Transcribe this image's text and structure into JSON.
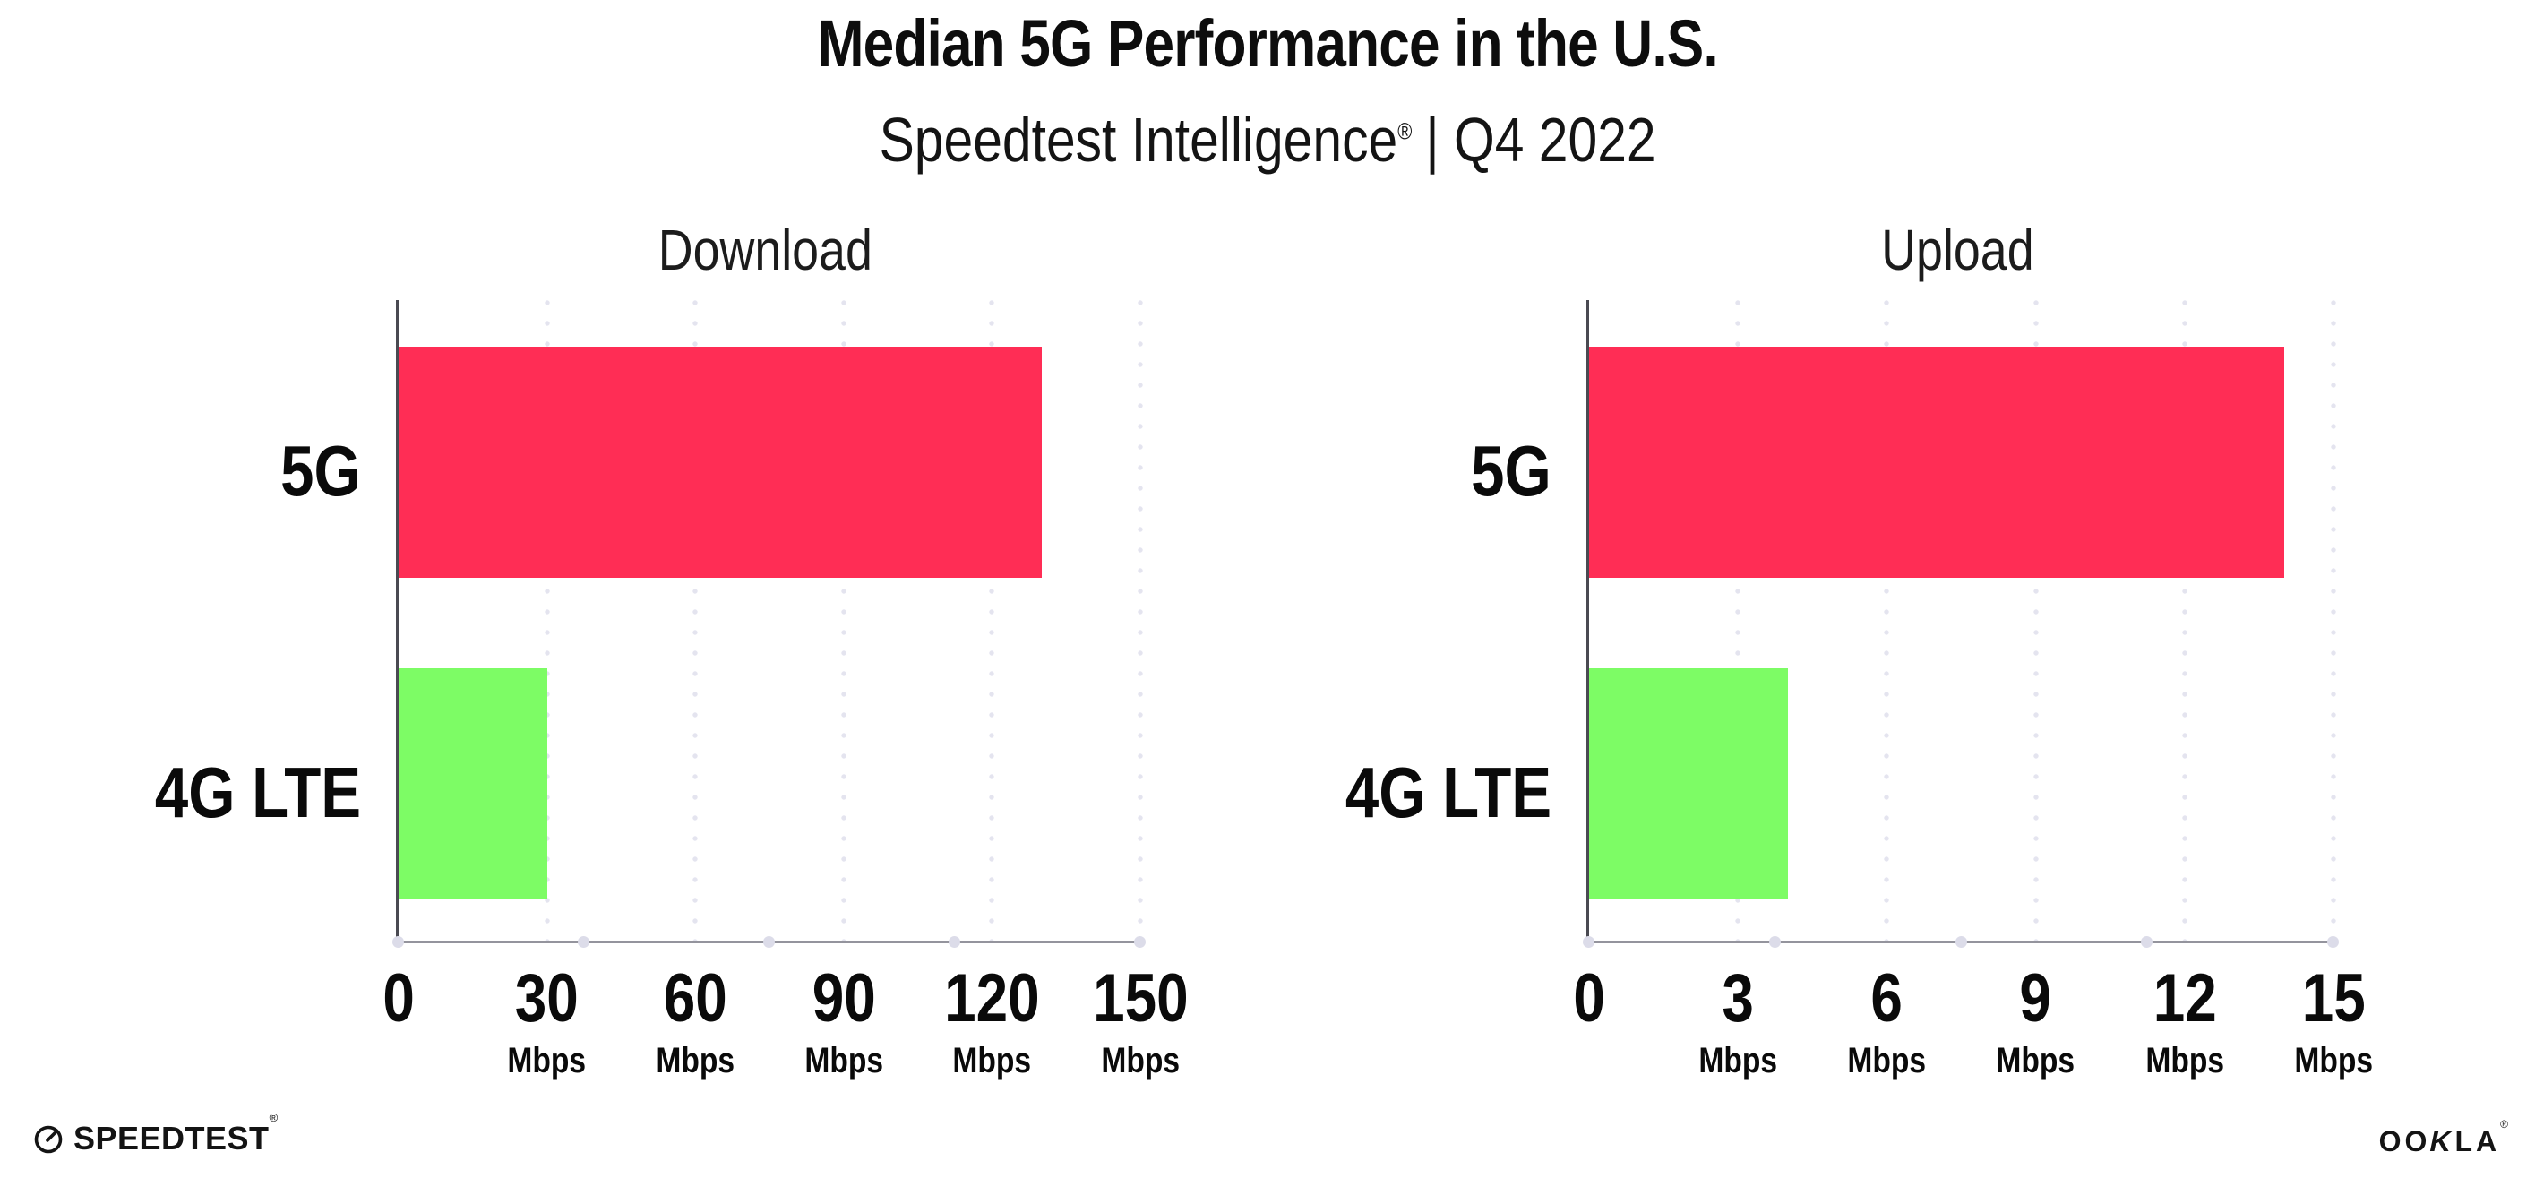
{
  "header": {
    "title": "Median 5G Performance in the U.S.",
    "subtitle": {
      "brand": "Speedtest Intelligence",
      "reg": "®",
      "rest": "| Q4 2022"
    }
  },
  "chart_data": [
    {
      "type": "bar",
      "orientation": "horizontal",
      "title": "Download",
      "categories": [
        "5G",
        "4G LTE"
      ],
      "values": [
        130,
        30
      ],
      "unit": "Mbps",
      "xlim": [
        0,
        150
      ],
      "xticks": [
        0,
        30,
        60,
        90,
        120,
        150
      ],
      "bar_colors": [
        "#ff2d55",
        "#7dfc65"
      ],
      "grid": "dotted-vertical-lavender",
      "legend": "none"
    },
    {
      "type": "bar",
      "orientation": "horizontal",
      "title": "Upload",
      "categories": [
        "5G",
        "4G LTE"
      ],
      "values": [
        14,
        4
      ],
      "unit": "Mbps",
      "xlim": [
        0,
        15
      ],
      "xticks": [
        0,
        3,
        6,
        9,
        12,
        15
      ],
      "bar_colors": [
        "#ff2d55",
        "#7dfc65"
      ],
      "grid": "dotted-vertical-lavender",
      "legend": "none"
    }
  ],
  "colors": {
    "bar_5g": "#ff2d55",
    "bar_4g_lte": "#7dfc65",
    "gridline": "#e4e4ef",
    "x_axis": "#94949d",
    "y_axis": "#4a4a52",
    "axis_dot": "#dcdce9",
    "text": "#0d0d0d",
    "background": "#ffffff"
  },
  "footer": {
    "speedtest_logo_text": "SPEEDTEST",
    "speedtest_reg": "®",
    "ookla_logo_text_left": "OO",
    "ookla_logo_k": "K",
    "ookla_logo_text_right": "LA",
    "ookla_reg": "®"
  }
}
